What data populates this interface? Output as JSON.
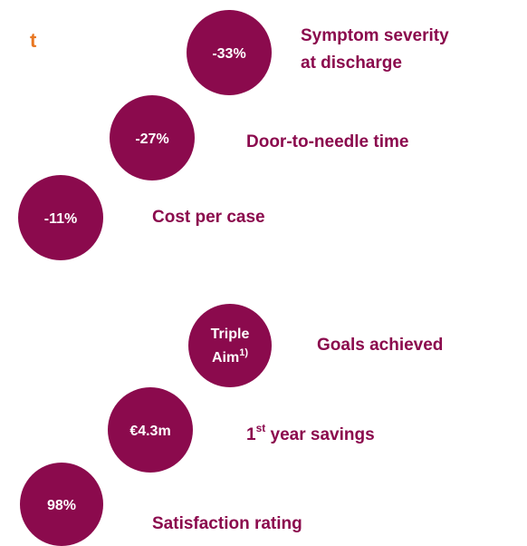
{
  "title_fragment": "t",
  "results": [
    {
      "value": "-33%",
      "label": [
        "Symptom severity",
        "at discharge"
      ]
    },
    {
      "value": "-27%",
      "label": [
        "Door-to-needle time"
      ]
    },
    {
      "value": "-11%",
      "label": [
        "Cost per case"
      ]
    }
  ],
  "impact": [
    {
      "value": [
        "Triple",
        "Aim",
        "1)"
      ],
      "label": [
        "Goals achieved"
      ]
    },
    {
      "value": [
        "€4.3m"
      ],
      "label": [
        "1",
        "st",
        " year savings"
      ]
    },
    {
      "value": [
        "98%"
      ],
      "label": [
        "Satisfaction rating"
      ]
    }
  ]
}
